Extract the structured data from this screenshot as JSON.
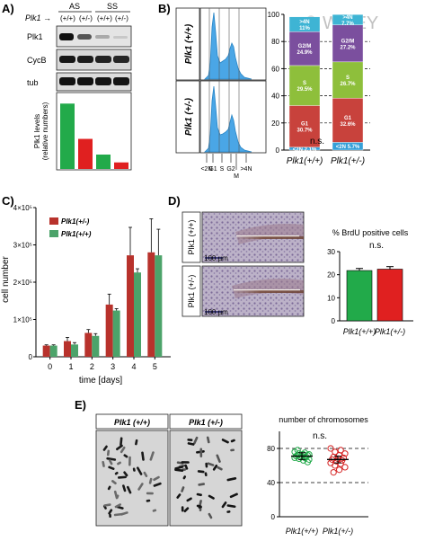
{
  "watermark": "© WILEY",
  "panels": {
    "A": {
      "letter": "A)",
      "plk1_arrow_label": "Plk1",
      "genotypes": [
        "(+/+)",
        "(+/-)",
        "(+/+)",
        "(+/-)"
      ],
      "groups": [
        "AS",
        "SS"
      ],
      "blot_rows": [
        "Plk1",
        "CycB",
        "tub"
      ],
      "ylabel": "Plk1 levels\n(relative numbers)",
      "chart_data": {
        "type": "bar",
        "categories": [
          "AS (+/+)",
          "AS (+/-)",
          "SS (+/+)",
          "SS (+/-)"
        ],
        "values": [
          1.0,
          0.46,
          0.22,
          0.1
        ],
        "colors": [
          "#22aa4a",
          "#e02020",
          "#22aa4a",
          "#e02020"
        ],
        "ylim": [
          0,
          1.1
        ],
        "yticks": []
      }
    },
    "B": {
      "letter": "B)",
      "row_labels": [
        "Plk1 (+/+)",
        "Plk1 (+/-)"
      ],
      "histogram_markers": [
        "<2N",
        "G1",
        "S",
        "G2",
        "M",
        ">4N"
      ],
      "yticks": [
        "0",
        "20",
        "40",
        "60",
        "80",
        "100"
      ],
      "ns": "n.s.",
      "chart_data": {
        "type": "bar",
        "stacked": true,
        "categories": [
          "Plk1(+/+)",
          "Plk1(+/-)"
        ],
        "series": [
          {
            "name": "<2N",
            "values": [
              2.1,
              5.7
            ],
            "color": "#35a0d8",
            "labels": [
              "<2N 2.1%",
              "<2N 5.7%"
            ]
          },
          {
            "name": "G1",
            "values": [
              30.7,
              32.6
            ],
            "color": "#c8423c",
            "labels": [
              "G1\n30.7%",
              "G1\n32.6%"
            ]
          },
          {
            "name": "S",
            "values": [
              29.5,
              26.7
            ],
            "color": "#8ebf3b",
            "labels": [
              "S\n29.5%",
              "S\n26.7%"
            ]
          },
          {
            "name": "G2/M",
            "values": [
              24.9,
              27.2
            ],
            "color": "#7b4f9e",
            "labels": [
              "G2/M\n24.9%",
              "G2/M\n27.2%"
            ]
          },
          {
            "name": ">4N",
            "values": [
              11,
              7.7
            ],
            "color": "#3eb4d4",
            "labels": [
              ">4N\n11%",
              ">4N\n7.7%"
            ]
          }
        ],
        "ylim": [
          0,
          100
        ],
        "grid_dashed": [
          20,
          40,
          60,
          80
        ]
      }
    },
    "C": {
      "letter": "C)",
      "ylabel": "cell number",
      "xlabel": "time [days]",
      "yticks": [
        "0",
        "1×10⁵",
        "2×10⁵",
        "3×10⁵",
        "4×10⁵"
      ],
      "xticks": [
        "0",
        "1",
        "2",
        "3",
        "4",
        "5"
      ],
      "chart_data": {
        "type": "bar",
        "categories": [
          "0",
          "1",
          "2",
          "3",
          "4",
          "5"
        ],
        "series": [
          {
            "name": "Plk1(+/-)",
            "color": "#b8322c",
            "values": [
              30000,
              42000,
              64000,
              140000,
              272000,
              280000
            ],
            "errors": [
              2000,
              10000,
              9000,
              28000,
              75000,
              90000
            ]
          },
          {
            "name": "Plk1(+/+)",
            "color": "#4ca36a",
            "values": [
              30000,
              33000,
              56000,
              124000,
              226000,
              272000
            ],
            "errors": [
              2000,
              5000,
              6000,
              5000,
              10000,
              70000
            ]
          }
        ],
        "ylim": [
          0,
          400000
        ],
        "legend": "top-left"
      }
    },
    "D": {
      "letter": "D)",
      "row_labels": [
        "Plk1 (+/+)",
        "Plk1 (+/-)"
      ],
      "scale_bar": "100 µm",
      "title": "% BrdU positive cells",
      "ns": "n.s.",
      "yticks": [
        "0",
        "10",
        "20",
        "30"
      ],
      "chart_data": {
        "type": "bar",
        "categories": [
          "Plk1(+/+)",
          "Plk1(+/-)"
        ],
        "values": [
          21.8,
          22.4
        ],
        "errors": [
          0.9,
          1.1
        ],
        "colors": [
          "#22aa4a",
          "#e02020"
        ],
        "ylim": [
          0,
          30
        ]
      }
    },
    "E": {
      "letter": "E)",
      "column_labels": [
        "Plk1 (+/+)",
        "Plk1 (+/-)"
      ],
      "title": "number of chromosomes",
      "ns": "n.s.",
      "yticks": [
        "0",
        "40",
        "80"
      ],
      "chart_data": {
        "type": "scatter",
        "categories": [
          "Plk1(+/+)",
          "Plk1(+/-)"
        ],
        "series": [
          {
            "name": "Plk1(+/+)",
            "color": "#22aa4a",
            "mean": 71,
            "values": [
              76,
              75,
              74,
              73,
              73,
              72,
              72,
              71,
              71,
              70,
              70,
              69,
              69,
              68,
              67,
              66,
              78,
              64
            ]
          },
          {
            "name": "Plk1(+/-)",
            "color": "#d42020",
            "mean": 67,
            "values": [
              80,
              78,
              76,
              74,
              72,
              70,
              69,
              68,
              67,
              66,
              65,
              63,
              62,
              60,
              58,
              55,
              52
            ]
          }
        ],
        "ylim": [
          0,
          100
        ],
        "grid_dashed": [
          40,
          80
        ]
      }
    }
  }
}
